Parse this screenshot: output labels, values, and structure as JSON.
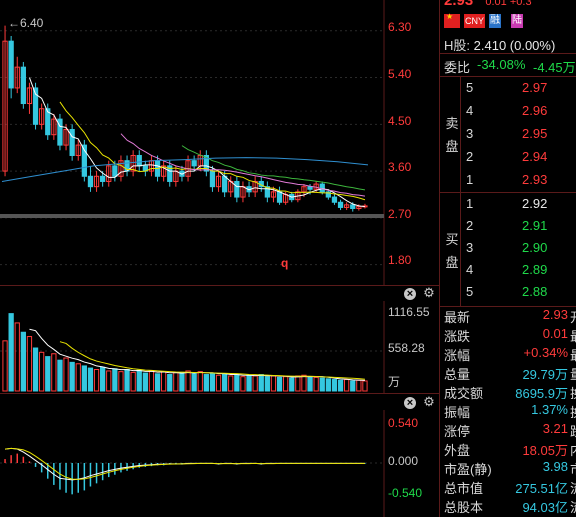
{
  "colors": {
    "up": "#ff3b3b",
    "down": "#35c8e0",
    "ma5": "#ffffff",
    "ma10": "#e8e300",
    "ma20": "#e27bd8",
    "ma30": "#3db53d",
    "ma60": "#2f8fd0",
    "grid": "#2a2a2a"
  },
  "header": {
    "price_partial": "2.93",
    "change_partial": "0.01 +0.3"
  },
  "badges": [
    {
      "name": "china-flag-icon",
      "label": ""
    },
    {
      "name": "cny-badge",
      "label": "CNY"
    },
    {
      "name": "rong-badge",
      "label": "融"
    },
    {
      "name": "lu-badge",
      "label": "陆"
    }
  ],
  "hshare": {
    "label": "H股:",
    "value": "2.410 (0.00%)"
  },
  "weibi": {
    "label": "委比",
    "pct": "-34.08%",
    "vol": "-4.45万"
  },
  "orderbook": {
    "sell_label": [
      "卖",
      "盘"
    ],
    "buy_label": [
      "买",
      "盘"
    ],
    "sell": [
      {
        "level": "5",
        "price": "2.97"
      },
      {
        "level": "4",
        "price": "2.96"
      },
      {
        "level": "3",
        "price": "2.95"
      },
      {
        "level": "2",
        "price": "2.94"
      },
      {
        "level": "1",
        "price": "2.93"
      }
    ],
    "buy": [
      {
        "level": "1",
        "price": "2.92"
      },
      {
        "level": "2",
        "price": "2.91"
      },
      {
        "level": "3",
        "price": "2.90"
      },
      {
        "level": "4",
        "price": "2.89"
      },
      {
        "level": "5",
        "price": "2.88"
      }
    ]
  },
  "stats": [
    {
      "k": "最新",
      "v": "2.93",
      "u": "开"
    },
    {
      "k": "涨跌",
      "v": "0.01",
      "u": "最"
    },
    {
      "k": "涨幅",
      "v": "+0.34%",
      "u": "最"
    },
    {
      "k": "总量",
      "v": "29.79万",
      "u": "量"
    },
    {
      "k": "成交额",
      "v": "8695.9万",
      "u": "换"
    },
    {
      "k": "振幅",
      "v": "1.37%",
      "u": "换"
    },
    {
      "k": "涨停",
      "v": "3.21",
      "u": "跌"
    },
    {
      "k": "外盘",
      "v": "18.05万",
      "u": "内"
    },
    {
      "k": "市盈(静)",
      "v": "3.98",
      "u": "市"
    },
    {
      "k": "总市值",
      "v": "275.51亿",
      "u": "流"
    },
    {
      "k": "总股本",
      "v": "94.03亿",
      "u": "流"
    }
  ],
  "price_chart": {
    "high_marker": "6.40",
    "q_marker": "q",
    "y_ticks": [
      "6.30",
      "5.40",
      "4.50",
      "3.60",
      "2.70",
      "1.80"
    ],
    "ylim": [
      1.6,
      6.7
    ]
  },
  "volume_chart": {
    "y_ticks": [
      "1116.55",
      "558.28",
      "万"
    ],
    "ylim": [
      0,
      1116.55
    ]
  },
  "macd_chart": {
    "y_ticks": [
      "0.540",
      "0.000",
      "-0.540"
    ],
    "ylim": [
      -0.6,
      0.6
    ]
  },
  "chart_data": [
    {
      "type": "candlestick",
      "title": "",
      "ylim": [
        1.6,
        6.7
      ],
      "y_ticks": [
        6.3,
        5.4,
        4.5,
        3.6,
        2.7,
        1.8
      ],
      "annotations": [
        "6.40"
      ],
      "series": [
        {
          "values": [
            [
              3.6,
              6.1,
              6.4,
              3.5
            ],
            [
              6.1,
              5.2,
              6.2,
              5.0
            ],
            [
              5.2,
              5.6,
              5.8,
              5.1
            ],
            [
              5.6,
              4.9,
              5.7,
              4.8
            ],
            [
              4.9,
              5.2,
              5.3,
              4.7
            ],
            [
              5.2,
              4.5,
              5.3,
              4.4
            ],
            [
              4.5,
              4.8,
              4.9,
              4.4
            ],
            [
              4.8,
              4.3,
              4.9,
              4.2
            ],
            [
              4.3,
              4.6,
              4.7,
              4.2
            ],
            [
              4.6,
              4.1,
              4.7,
              4.0
            ],
            [
              4.1,
              4.4,
              4.5,
              4.0
            ],
            [
              4.4,
              3.9,
              4.5,
              3.8
            ],
            [
              3.9,
              4.1,
              4.2,
              3.8
            ],
            [
              4.1,
              3.5,
              4.2,
              3.4
            ],
            [
              3.5,
              3.3,
              3.7,
              3.2
            ],
            [
              3.3,
              3.5,
              3.6,
              3.2
            ],
            [
              3.5,
              3.4,
              3.6,
              3.3
            ],
            [
              3.4,
              3.7,
              3.8,
              3.3
            ],
            [
              3.7,
              3.5,
              3.8,
              3.4
            ],
            [
              3.5,
              3.8,
              3.9,
              3.4
            ],
            [
              3.8,
              3.6,
              3.9,
              3.5
            ],
            [
              3.6,
              3.9,
              4.0,
              3.5
            ],
            [
              3.9,
              3.7,
              4.0,
              3.6
            ],
            [
              3.7,
              3.6,
              3.8,
              3.5
            ],
            [
              3.6,
              3.8,
              3.9,
              3.5
            ],
            [
              3.8,
              3.5,
              3.9,
              3.4
            ],
            [
              3.5,
              3.7,
              3.8,
              3.4
            ],
            [
              3.7,
              3.4,
              3.8,
              3.3
            ],
            [
              3.4,
              3.6,
              3.7,
              3.3
            ],
            [
              3.6,
              3.5,
              3.7,
              3.4
            ],
            [
              3.5,
              3.8,
              3.9,
              3.4
            ],
            [
              3.8,
              3.7,
              3.9,
              3.6
            ],
            [
              3.7,
              3.9,
              4.0,
              3.6
            ],
            [
              3.9,
              3.6,
              4.0,
              3.5
            ],
            [
              3.6,
              3.3,
              3.7,
              3.2
            ],
            [
              3.3,
              3.5,
              3.6,
              3.2
            ],
            [
              3.5,
              3.2,
              3.6,
              3.1
            ],
            [
              3.2,
              3.4,
              3.5,
              3.1
            ],
            [
              3.4,
              3.1,
              3.5,
              3.0
            ],
            [
              3.1,
              3.3,
              3.4,
              3.0
            ],
            [
              3.3,
              3.2,
              3.4,
              3.1
            ],
            [
              3.2,
              3.4,
              3.5,
              3.1
            ],
            [
              3.4,
              3.3,
              3.5,
              3.2
            ],
            [
              3.3,
              3.1,
              3.4,
              3.0
            ],
            [
              3.1,
              3.2,
              3.3,
              3.0
            ],
            [
              3.2,
              3.0,
              3.3,
              2.95
            ],
            [
              3.0,
              3.15,
              3.2,
              2.95
            ],
            [
              3.15,
              3.05,
              3.2,
              3.0
            ],
            [
              3.05,
              3.2,
              3.25,
              3.0
            ],
            [
              3.2,
              3.3,
              3.35,
              3.1
            ],
            [
              3.3,
              3.25,
              3.35,
              3.15
            ],
            [
              3.25,
              3.35,
              3.4,
              3.2
            ],
            [
              3.35,
              3.2,
              3.4,
              3.15
            ],
            [
              3.2,
              3.1,
              3.25,
              3.05
            ],
            [
              3.1,
              3.0,
              3.15,
              2.95
            ],
            [
              3.0,
              2.9,
              3.05,
              2.85
            ],
            [
              2.9,
              2.95,
              3.0,
              2.85
            ],
            [
              2.95,
              2.88,
              3.0,
              2.82
            ],
            [
              2.88,
              2.92,
              2.96,
              2.84
            ],
            [
              2.92,
              2.93,
              2.97,
              2.88
            ]
          ]
        }
      ]
    },
    {
      "type": "bar",
      "title": "",
      "ylim": [
        0,
        1116.55
      ],
      "y_ticks": [
        1116.55,
        558.28
      ],
      "ylabel": "万",
      "series": [
        {
          "values": [
            700,
            1080,
            950,
            820,
            760,
            600,
            540,
            480,
            520,
            430,
            460,
            400,
            380,
            350,
            320,
            300,
            330,
            280,
            310,
            270,
            300,
            260,
            290,
            250,
            280,
            240,
            270,
            230,
            260,
            250,
            280,
            240,
            270,
            230,
            250,
            220,
            240,
            210,
            230,
            200,
            220,
            210,
            230,
            200,
            210,
            190,
            200,
            180,
            210,
            220,
            200,
            190,
            180,
            170,
            160,
            150,
            160,
            140,
            150,
            140
          ]
        }
      ]
    },
    {
      "type": "bar",
      "title": "",
      "ylim": [
        -0.6,
        0.6
      ],
      "y_ticks": [
        0.54,
        0.0,
        -0.54
      ],
      "series": [
        {
          "values": [
            0.05,
            0.1,
            0.12,
            0.08,
            0.02,
            -0.05,
            -0.12,
            -0.2,
            -0.28,
            -0.34,
            -0.38,
            -0.4,
            -0.38,
            -0.35,
            -0.3,
            -0.26,
            -0.22,
            -0.18,
            -0.15,
            -0.12,
            -0.1,
            -0.08,
            -0.06,
            -0.05,
            -0.04,
            -0.03,
            -0.03,
            -0.02,
            -0.02,
            -0.02,
            -0.01,
            -0.01,
            -0.01,
            -0.01,
            -0.01,
            -0.02,
            -0.01,
            -0.01,
            -0.02,
            -0.01,
            -0.01,
            -0.01,
            -0.02,
            -0.01,
            -0.01,
            -0.01,
            -0.01,
            -0.01,
            -0.01,
            -0.01,
            -0.01,
            -0.01,
            -0.01,
            -0.01,
            -0.01,
            -0.01,
            -0.01,
            -0.01,
            -0.01,
            -0.01
          ]
        }
      ]
    }
  ]
}
